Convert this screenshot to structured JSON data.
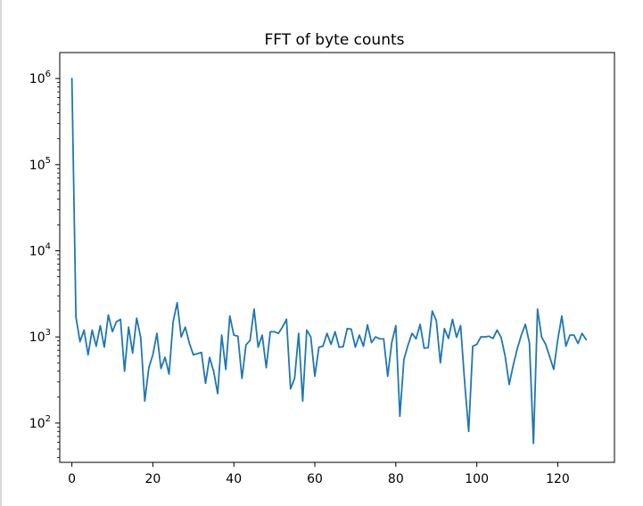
{
  "chart_data": {
    "type": "line",
    "title": "FFT of byte counts",
    "xlabel": "",
    "ylabel": "",
    "yscale": "log",
    "xlim": [
      -3,
      134
    ],
    "ylim": [
      35,
      2000000
    ],
    "x_ticks": [
      0,
      20,
      40,
      60,
      80,
      100,
      120
    ],
    "y_ticks": [
      100,
      1000,
      10000,
      100000,
      1000000
    ],
    "y_tick_labels": [
      {
        "base": "10",
        "exp": "2"
      },
      {
        "base": "10",
        "exp": "3"
      },
      {
        "base": "10",
        "exp": "4"
      },
      {
        "base": "10",
        "exp": "5"
      },
      {
        "base": "10",
        "exp": "6"
      }
    ],
    "grid": false,
    "line_color": "#1f77b4",
    "series": [
      {
        "values": [
          1000000,
          1700,
          880,
          1200,
          620,
          1200,
          780,
          1350,
          760,
          1800,
          1150,
          1500,
          1600,
          400,
          1300,
          650,
          1650,
          980,
          180,
          440,
          620,
          1100,
          430,
          580,
          370,
          1500,
          2500,
          1000,
          1300,
          850,
          620,
          640,
          660,
          290,
          580,
          400,
          220,
          1050,
          420,
          1750,
          1050,
          1020,
          330,
          810,
          910,
          2100,
          760,
          1050,
          440,
          1150,
          1150,
          1100,
          1300,
          1600,
          250,
          330,
          1100,
          180,
          1200,
          1000,
          350,
          760,
          780,
          1100,
          820,
          1150,
          760,
          770,
          1250,
          1230,
          760,
          1050,
          780,
          1380,
          860,
          1000,
          950,
          950,
          350,
          860,
          1350,
          120,
          550,
          800,
          1100,
          950,
          1400,
          740,
          750,
          2000,
          1550,
          500,
          1250,
          960,
          1600,
          990,
          1350,
          300,
          80,
          780,
          820,
          1000,
          1000,
          1020,
          960,
          1200,
          990,
          600,
          280,
          470,
          730,
          1050,
          1400,
          850,
          58,
          2100,
          1000,
          820,
          590,
          420,
          930,
          1750,
          780,
          1050,
          1050,
          840,
          1100,
          930
        ]
      }
    ]
  }
}
